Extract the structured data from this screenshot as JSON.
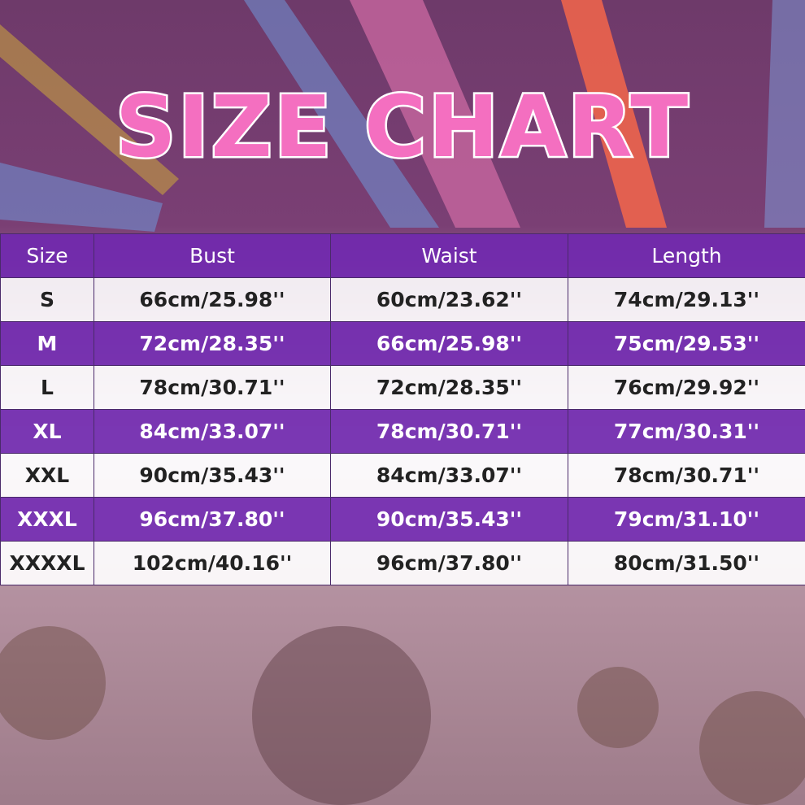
{
  "title": "SIZE CHART",
  "table": {
    "header": [
      "Size",
      "Bust",
      "Waist",
      "Length"
    ],
    "rows": [
      [
        "S",
        "66cm/25.98''",
        "60cm/23.62''",
        "74cm/29.13''"
      ],
      [
        "M",
        "72cm/28.35''",
        "66cm/25.98''",
        "75cm/29.53''"
      ],
      [
        "L",
        "78cm/30.71''",
        "72cm/28.35''",
        "76cm/29.92''"
      ],
      [
        "XL",
        "84cm/33.07''",
        "78cm/30.71''",
        "77cm/30.31''"
      ],
      [
        "XXL",
        "90cm/35.43''",
        "84cm/33.07''",
        "78cm/30.71''"
      ],
      [
        "XXXL",
        "96cm/37.80''",
        "90cm/35.43''",
        "79cm/31.10''"
      ],
      [
        "XXXXL",
        "102cm/40.16''",
        "96cm/37.80''",
        "80cm/31.50''"
      ]
    ]
  }
}
